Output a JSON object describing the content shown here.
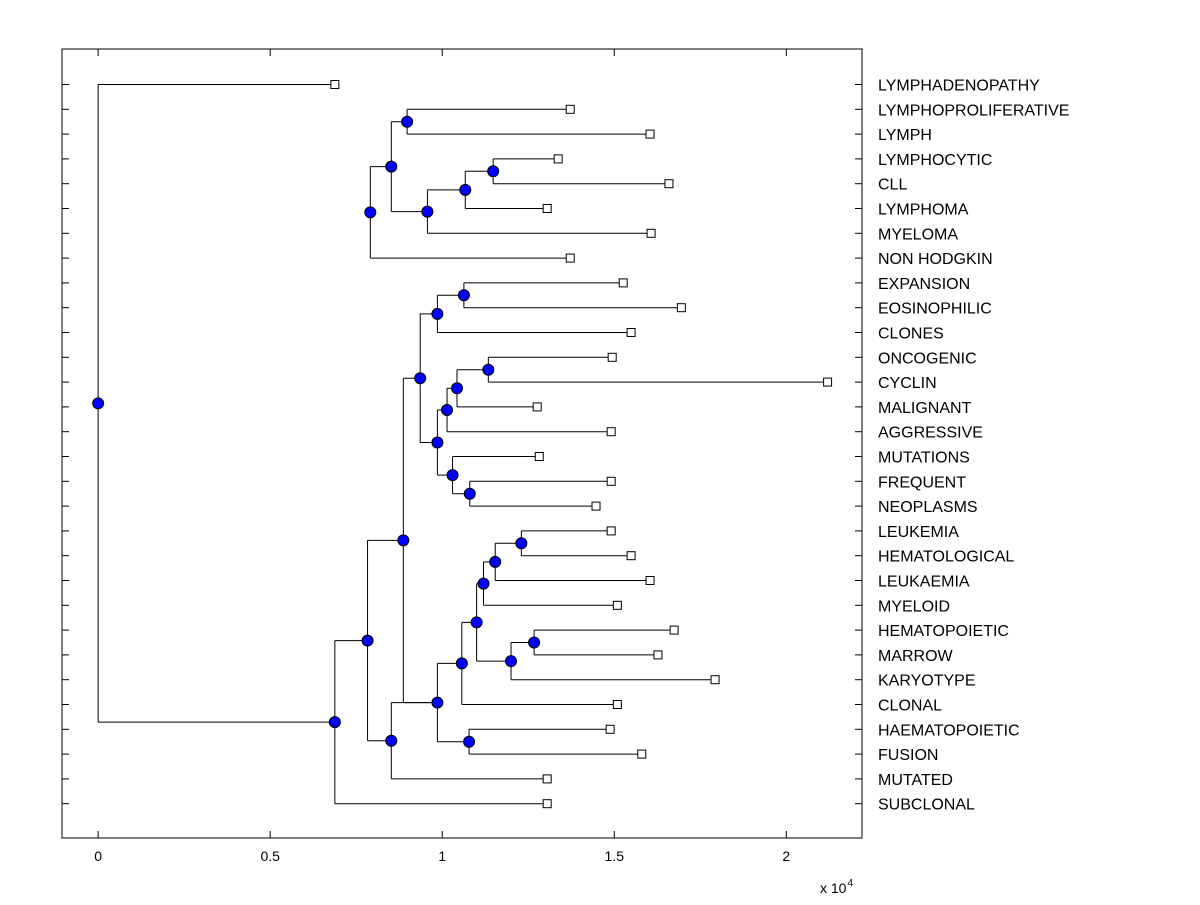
{
  "chart_data": {
    "type": "dendrogram",
    "orientation": "horizontal",
    "xlim": [
      -0.105,
      2.22
    ],
    "xticks": [
      0,
      0.5,
      1,
      1.5,
      2
    ],
    "xtick_labels": [
      "0",
      "0.5",
      "1",
      "1.5",
      "2"
    ],
    "x_multiplier_base": "x 10",
    "x_multiplier_exponent": "4",
    "colors": {
      "node": "#0000ff",
      "line": "#000000",
      "leaf_marker": "#ffffff"
    },
    "leaves": [
      {
        "label": "LYMPHADENOPATHY",
        "x": 0.688
      },
      {
        "label": "LYMPHOPROLIFERATIVE",
        "x": 1.372
      },
      {
        "label": "LYMPH",
        "x": 1.604
      },
      {
        "label": "LYMPHOCYTIC",
        "x": 1.337
      },
      {
        "label": "CLL",
        "x": 1.659
      },
      {
        "label": "LYMPHOMA",
        "x": 1.305
      },
      {
        "label": "MYELOMA",
        "x": 1.607
      },
      {
        "label": "NON HODGKIN",
        "x": 1.372
      },
      {
        "label": "EXPANSION",
        "x": 1.526
      },
      {
        "label": "EOSINOPHILIC",
        "x": 1.695
      },
      {
        "label": "CLONES",
        "x": 1.549
      },
      {
        "label": "ONCOGENIC",
        "x": 1.494
      },
      {
        "label": "CYCLIN",
        "x": 2.12
      },
      {
        "label": "MALIGNANT",
        "x": 1.276
      },
      {
        "label": "AGGRESSIVE",
        "x": 1.491
      },
      {
        "label": "MUTATIONS",
        "x": 1.282
      },
      {
        "label": "FREQUENT",
        "x": 1.491
      },
      {
        "label": "NEOPLASMS",
        "x": 1.447
      },
      {
        "label": "LEUKEMIA",
        "x": 1.491
      },
      {
        "label": "HEMATOLOGICAL",
        "x": 1.549
      },
      {
        "label": "LEUKAEMIA",
        "x": 1.604
      },
      {
        "label": "MYELOID",
        "x": 1.509
      },
      {
        "label": "HEMATOPOIETIC",
        "x": 1.674
      },
      {
        "label": "MARROW",
        "x": 1.627
      },
      {
        "label": "KARYOTYPE",
        "x": 1.793
      },
      {
        "label": "CLONAL",
        "x": 1.509
      },
      {
        "label": "HAEMATOPOIETIC",
        "x": 1.488
      },
      {
        "label": "FUSION",
        "x": 1.58
      },
      {
        "label": "MUTATED",
        "x": 1.305
      },
      {
        "label": "SUBCLONAL",
        "x": 1.305
      }
    ],
    "merges": [
      {
        "id": "n1",
        "x": 0.898,
        "children": [
          "L1",
          "L2"
        ]
      },
      {
        "id": "n2",
        "x": 1.148,
        "children": [
          "L3",
          "L4"
        ]
      },
      {
        "id": "n3",
        "x": 1.067,
        "children": [
          "n2",
          "L5"
        ]
      },
      {
        "id": "n4",
        "x": 0.957,
        "children": [
          "n3",
          "L6"
        ]
      },
      {
        "id": "n5",
        "x": 0.852,
        "children": [
          "n1",
          "n4"
        ]
      },
      {
        "id": "n6",
        "x": 0.791,
        "children": [
          "n5",
          "L7"
        ]
      },
      {
        "id": "n7",
        "x": 1.063,
        "children": [
          "L8",
          "L9"
        ]
      },
      {
        "id": "n8",
        "x": 0.986,
        "children": [
          "n7",
          "L10"
        ]
      },
      {
        "id": "n9",
        "x": 1.134,
        "children": [
          "L11",
          "L12"
        ]
      },
      {
        "id": "n10",
        "x": 1.043,
        "children": [
          "n9",
          "L13"
        ]
      },
      {
        "id": "n11",
        "x": 1.014,
        "children": [
          "n10",
          "L14"
        ]
      },
      {
        "id": "n12",
        "x": 1.08,
        "children": [
          "L16",
          "L17"
        ]
      },
      {
        "id": "n13",
        "x": 1.03,
        "children": [
          "n12",
          "L15"
        ]
      },
      {
        "id": "n14",
        "x": 0.986,
        "children": [
          "n11",
          "n13"
        ]
      },
      {
        "id": "n15",
        "x": 0.936,
        "children": [
          "n8",
          "n14"
        ]
      },
      {
        "id": "n16",
        "x": 1.23,
        "children": [
          "L18",
          "L19"
        ]
      },
      {
        "id": "n17",
        "x": 1.154,
        "children": [
          "n16",
          "L20"
        ]
      },
      {
        "id": "n18",
        "x": 1.267,
        "children": [
          "L22",
          "L23"
        ]
      },
      {
        "id": "n19",
        "x": 1.2,
        "children": [
          "n18",
          "L24"
        ]
      },
      {
        "id": "n20",
        "x": 1.12,
        "children": [
          "n17",
          "L21"
        ]
      },
      {
        "id": "n21",
        "x": 1.1,
        "children": [
          "n20",
          "n19"
        ]
      },
      {
        "id": "n22",
        "x": 1.057,
        "children": [
          "n21",
          "L25"
        ]
      },
      {
        "id": "n23",
        "x": 1.078,
        "children": [
          "L26",
          "L27"
        ]
      },
      {
        "id": "n24",
        "x": 0.986,
        "children": [
          "n22",
          "n23"
        ]
      },
      {
        "id": "n25",
        "x": 0.887,
        "children": [
          "n15",
          "n24"
        ]
      },
      {
        "id": "n26",
        "x": 0.852,
        "children": [
          "L28",
          "n24"
        ]
      },
      {
        "id": "n27",
        "x": 0.783,
        "children": [
          "n25",
          "n26"
        ]
      },
      {
        "id": "n28",
        "x": 0.688,
        "children": [
          "n27",
          "L29"
        ]
      },
      {
        "id": "n29",
        "x": 0,
        "children": [
          "L0",
          "n28"
        ]
      }
    ]
  }
}
